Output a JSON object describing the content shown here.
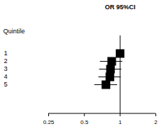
{
  "chart_data": {
    "type": "forest",
    "title": "OR 95%CI",
    "y_label": "Quintile",
    "categories": [
      "1",
      "2",
      "3",
      "4",
      "5"
    ],
    "values": [
      1.0,
      0.85,
      0.83,
      0.82,
      0.76
    ],
    "lower": [
      null,
      0.68,
      0.67,
      0.66,
      0.61
    ],
    "upper": [
      null,
      1.05,
      1.03,
      1.02,
      0.95
    ],
    "reference": 1,
    "log": "x",
    "xlim": [
      0.25,
      2
    ],
    "xticks": [
      0.25,
      0.5,
      1,
      2
    ],
    "color": "#000000",
    "marker": "square"
  }
}
